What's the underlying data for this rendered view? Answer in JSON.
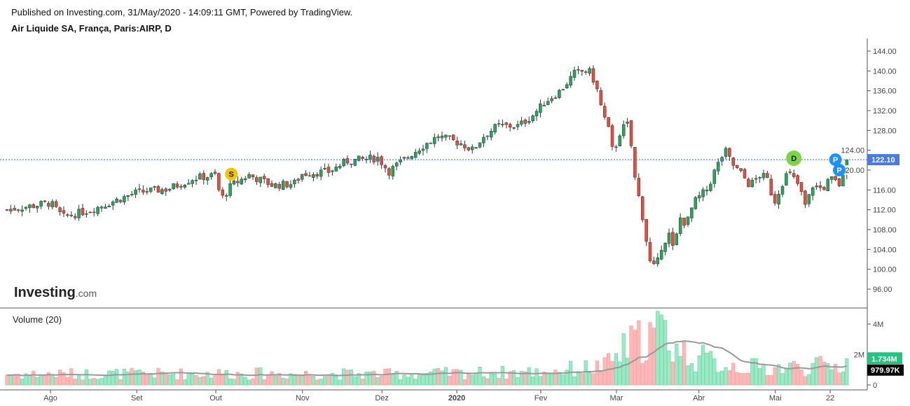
{
  "header": {
    "published": "Published on Investing.com, 31/May/2020 - 14:09:11 GMT, Powered by TradingView.",
    "symbol": "Air Liquide SA, França, Paris:AIRP, D"
  },
  "logo": {
    "text": "Investing",
    "suffix": ".com"
  },
  "chart_data": {
    "type": "candlestick",
    "title": "Air Liquide SA, França, Paris:AIRP, D",
    "price_axis": {
      "ticks": [
        "144.00",
        "140.00",
        "136.00",
        "132.00",
        "128.00",
        "124.00",
        "120.00",
        "116.00",
        "112.00",
        "108.00",
        "104.00",
        "100.00",
        "96.00"
      ],
      "range": [
        94,
        146.5
      ]
    },
    "last_price": {
      "label": "122.10",
      "value": 122.1,
      "color": "#4a7ae0"
    },
    "x_ticks": [
      {
        "label": "Ago",
        "day": 11.5
      },
      {
        "label": "Set",
        "day": 34.3
      },
      {
        "label": "Out",
        "day": 55.2
      },
      {
        "label": "Nov",
        "day": 78.1
      },
      {
        "label": "Dez",
        "day": 99.1
      },
      {
        "label": "2020",
        "day": 118.9
      },
      {
        "label": "Fev",
        "day": 141.1
      },
      {
        "label": "Mar",
        "day": 161.1
      },
      {
        "label": "Abr",
        "day": 182.9
      },
      {
        "label": "Mai",
        "day": 203.1
      },
      {
        "label": "22",
        "day": 217.6
      }
    ],
    "close_keypoints": [
      [
        0,
        112
      ],
      [
        11.5,
        113.4
      ],
      [
        14.8,
        110.5
      ],
      [
        22.2,
        112
      ],
      [
        34.3,
        115.5
      ],
      [
        42.6,
        116.2
      ],
      [
        49.1,
        118.3
      ],
      [
        55.2,
        119
      ],
      [
        56.5,
        114
      ],
      [
        59.3,
        116.9
      ],
      [
        63.9,
        119
      ],
      [
        70.4,
        116.9
      ],
      [
        75.9,
        117.3
      ],
      [
        78.1,
        119.3
      ],
      [
        85.2,
        119.7
      ],
      [
        89.8,
        121.8
      ],
      [
        98.1,
        122.5
      ],
      [
        100.9,
        119.7
      ],
      [
        105.6,
        122.5
      ],
      [
        109.3,
        124.6
      ],
      [
        113.9,
        126.8
      ],
      [
        120.4,
        125.3
      ],
      [
        123.1,
        124
      ],
      [
        125.9,
        126.8
      ],
      [
        129.6,
        128.9
      ],
      [
        135.2,
        128.9
      ],
      [
        138.9,
        131
      ],
      [
        142.6,
        134
      ],
      [
        146.3,
        136
      ],
      [
        150,
        139.5
      ],
      [
        153.7,
        140.2
      ],
      [
        155.6,
        137.4
      ],
      [
        157.4,
        131.7
      ],
      [
        159.3,
        127.5
      ],
      [
        160.2,
        123.2
      ],
      [
        162,
        127.5
      ],
      [
        163.9,
        129.6
      ],
      [
        165.2,
        124
      ],
      [
        166.1,
        117.6
      ],
      [
        167.6,
        112.6
      ],
      [
        168.9,
        106.3
      ],
      [
        170,
        101.4
      ],
      [
        171.5,
        100
      ],
      [
        173.1,
        104.9
      ],
      [
        175,
        107
      ],
      [
        176.3,
        103.5
      ],
      [
        177.8,
        110.5
      ],
      [
        179.6,
        109
      ],
      [
        181.5,
        113.4
      ],
      [
        183.3,
        114.8
      ],
      [
        185.2,
        116.2
      ],
      [
        187,
        119.7
      ],
      [
        189.8,
        124
      ],
      [
        191.7,
        121.2
      ],
      [
        194.4,
        119
      ],
      [
        196.3,
        116.9
      ],
      [
        199.1,
        119
      ],
      [
        200.9,
        118.3
      ],
      [
        202.8,
        113.4
      ],
      [
        204.6,
        116.9
      ],
      [
        206.5,
        119.7
      ],
      [
        209.3,
        116.9
      ],
      [
        211.1,
        112.6
      ],
      [
        213,
        116.9
      ],
      [
        215.7,
        116.2
      ],
      [
        217.6,
        118.3
      ],
      [
        220.4,
        116.9
      ],
      [
        222,
        122.1
      ]
    ],
    "volume": {
      "title": "Volume (20)",
      "ticks": [
        "4M",
        "2M",
        "0"
      ],
      "range": [
        0,
        4.6
      ],
      "keypoints": [
        [
          0,
          0.7
        ],
        [
          60,
          0.75
        ],
        [
          100,
          0.7
        ],
        [
          140,
          0.85
        ],
        [
          158,
          1.2
        ],
        [
          164,
          2.5
        ],
        [
          169,
          3.2
        ],
        [
          173,
          3.6
        ],
        [
          178,
          2.2
        ],
        [
          188,
          1.4
        ],
        [
          200,
          1.1
        ],
        [
          222,
          1.3
        ]
      ],
      "last_volume": {
        "label": "1.734M",
        "value": 1.734,
        "color": "#26c281"
      },
      "average": {
        "label": "979.97K",
        "value": 0.98
      }
    },
    "markers": [
      {
        "label": "S",
        "day": 59.3,
        "price": 119.2,
        "color": "#f5c400"
      },
      {
        "label": "D",
        "day": 208,
        "price": 122.4,
        "color": "#7dd444"
      },
      {
        "label": "P",
        "day": 219,
        "price": 122.1,
        "color": "#1e90ff"
      },
      {
        "label": "P",
        "day": 220,
        "price": 120,
        "color": "#1e90ff"
      }
    ],
    "colors": {
      "up": "#26a65b",
      "down": "#e74c3c",
      "vol_up": "#9ee8c6",
      "vol_down": "#ffb8b8"
    }
  }
}
